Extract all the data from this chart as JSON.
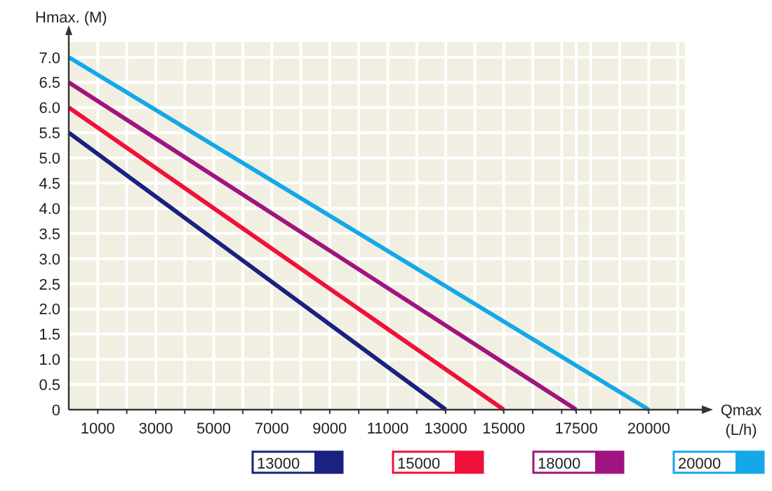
{
  "chart_data": {
    "type": "line",
    "xlabel": "Qmax (L/h)",
    "ylabel": "Hmax. (M)",
    "xlim": [
      0,
      21250
    ],
    "ylim": [
      0,
      7.3
    ],
    "xticks": [
      1000,
      {
        "value": 2000,
        "label": null
      },
      3000,
      {
        "value": 4000,
        "label": null
      },
      5000,
      {
        "value": 6000,
        "label": null
      },
      7000,
      {
        "value": 8000,
        "label": null
      },
      9000,
      {
        "value": 10000,
        "label": null
      },
      11000,
      {
        "value": 12000,
        "label": null
      },
      13000,
      {
        "value": 14000,
        "label": null
      },
      15000,
      {
        "value": 16000,
        "label": null
      },
      {
        "value": 17000,
        "label": null
      },
      17500,
      {
        "value": 18000,
        "label": null
      },
      {
        "value": 19000,
        "label": null
      },
      20000,
      {
        "value": 21000,
        "label": null
      }
    ],
    "yticks": [
      0,
      {
        "value": 0.5,
        "label": "0.5"
      },
      {
        "value": 1,
        "label": "1.0"
      },
      {
        "value": 1.5,
        "label": "1.5"
      },
      {
        "value": 2,
        "label": "2.0"
      },
      {
        "value": 2.5,
        "label": "2.5"
      },
      {
        "value": 3,
        "label": "3.0"
      },
      {
        "value": 3.5,
        "label": "3.5"
      },
      {
        "value": 4,
        "label": "4.0"
      },
      {
        "value": 4.5,
        "label": "4.5"
      },
      {
        "value": 5,
        "label": "5.0"
      },
      {
        "value": 5.5,
        "label": "5.5"
      },
      {
        "value": 6,
        "label": "6.0"
      },
      {
        "value": 6.5,
        "label": "6.5"
      },
      {
        "value": 7,
        "label": "7.0"
      }
    ],
    "grid": true,
    "legend": "bottom",
    "marker": "none",
    "line_style": "solid",
    "series": [
      {
        "name": "13000",
        "color": "#1a2180",
        "x": [
          0,
          13000
        ],
        "values": [
          5.5,
          0
        ]
      },
      {
        "name": "15000",
        "color": "#f0103a",
        "x": [
          0,
          15000
        ],
        "values": [
          6,
          0
        ]
      },
      {
        "name": "18000",
        "color": "#a0147f",
        "x": [
          0,
          17500
        ],
        "values": [
          6.5,
          0
        ]
      },
      {
        "name": "20000",
        "color": "#14a8e8",
        "x": [
          0,
          20000
        ],
        "values": [
          7,
          0
        ]
      }
    ]
  }
}
